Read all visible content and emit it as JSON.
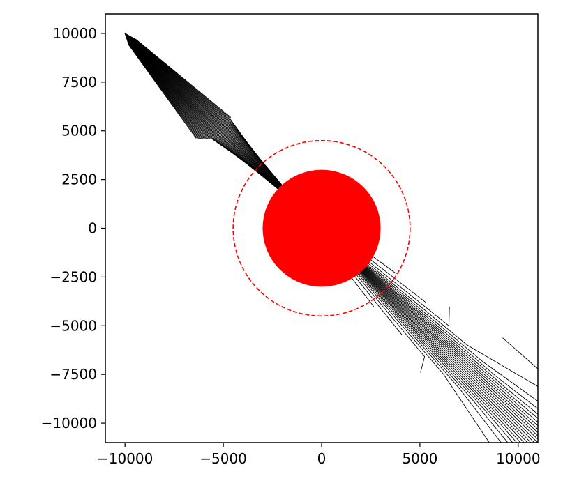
{
  "chart_data": {
    "type": "line",
    "title": "",
    "xlabel": "",
    "ylabel": "",
    "xlim": [
      -11000,
      11000
    ],
    "ylim": [
      -11000,
      11000
    ],
    "x_ticks": [
      {
        "value": -10000,
        "label": "−10000"
      },
      {
        "value": -5000,
        "label": "−5000"
      },
      {
        "value": 0,
        "label": "0"
      },
      {
        "value": 5000,
        "label": "5000"
      },
      {
        "value": 10000,
        "label": "10000"
      }
    ],
    "y_ticks": [
      {
        "value": 10000,
        "label": "10000"
      },
      {
        "value": 7500,
        "label": "7500"
      },
      {
        "value": 5000,
        "label": "5000"
      },
      {
        "value": 2500,
        "label": "2500"
      },
      {
        "value": 0,
        "label": "0"
      },
      {
        "value": -2500,
        "label": "−2500"
      },
      {
        "value": -5000,
        "label": "−5000"
      },
      {
        "value": -7500,
        "label": "−7500"
      },
      {
        "value": -10000,
        "label": "−10000"
      }
    ],
    "grid": false,
    "legend": false,
    "source_point": [
      -10000,
      10000
    ],
    "body": {
      "center": [
        0,
        0
      ],
      "radius": 3000,
      "color": "#ff0000"
    },
    "ring": {
      "center": [
        0,
        0
      ],
      "radius": 4500,
      "color": "#ff0000",
      "style": "dashed"
    },
    "trajectory_color": "#000000",
    "trajectory_count": 45
  }
}
